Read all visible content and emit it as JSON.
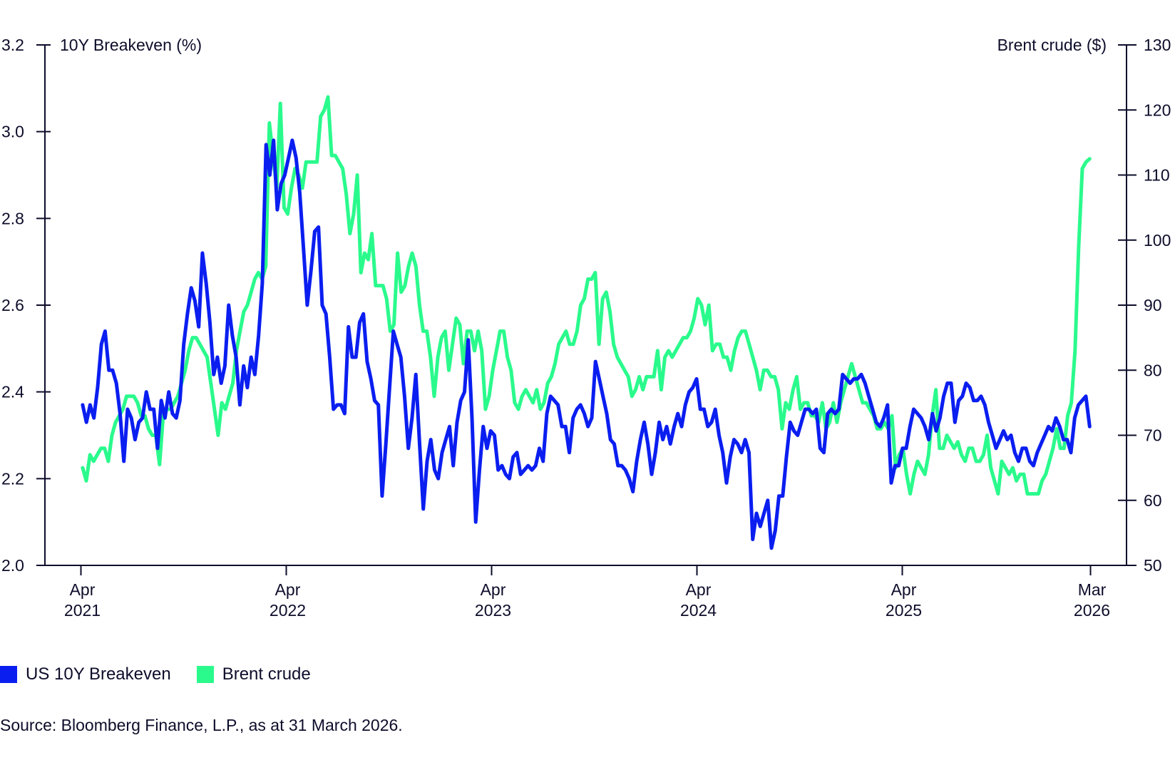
{
  "chart_data": {
    "type": "line",
    "x_range": [
      "2021-04",
      "2026-03"
    ],
    "frequency": "weekly",
    "x_ticks": [
      {
        "month": "Apr",
        "year": "2021",
        "index": 0
      },
      {
        "month": "Apr",
        "year": "2022",
        "index": 12
      },
      {
        "month": "Apr",
        "year": "2023",
        "index": 24
      },
      {
        "month": "Apr",
        "year": "2024",
        "index": 36
      },
      {
        "month": "Apr",
        "year": "2025",
        "index": 48
      },
      {
        "month": "Mar",
        "year": "2026",
        "index": 59
      }
    ],
    "y_left": {
      "label": "10Y Breakeven (%)",
      "ylim": [
        2.0,
        3.2
      ],
      "ticks": [
        "2.0",
        "2.2",
        "2.4",
        "2.6",
        "2.8",
        "3.0",
        "3.2"
      ]
    },
    "y_right": {
      "label": "Brent crude ($)",
      "ylim": [
        50,
        130
      ],
      "ticks": [
        "50",
        "60",
        "70",
        "80",
        "90",
        "100",
        "110",
        "120",
        "130"
      ]
    },
    "grid": false,
    "legend_position": "bottom-left",
    "series": [
      {
        "name": "US 10Y Breakeven",
        "axis": "left",
        "color": "#0a1ef0",
        "values": [
          2.37,
          2.33,
          2.37,
          2.34,
          2.41,
          2.51,
          2.54,
          2.45,
          2.45,
          2.42,
          2.35,
          2.24,
          2.36,
          2.34,
          2.29,
          2.33,
          2.34,
          2.4,
          2.36,
          2.36,
          2.27,
          2.38,
          2.34,
          2.4,
          2.35,
          2.34,
          2.38,
          2.51,
          2.58,
          2.64,
          2.61,
          2.55,
          2.72,
          2.65,
          2.56,
          2.44,
          2.48,
          2.42,
          2.46,
          2.6,
          2.53,
          2.48,
          2.37,
          2.46,
          2.41,
          2.48,
          2.44,
          2.53,
          2.65,
          2.97,
          2.9,
          2.98,
          2.82,
          2.88,
          2.9,
          2.94,
          2.98,
          2.94,
          2.86,
          2.73,
          2.6,
          2.68,
          2.77,
          2.78,
          2.6,
          2.58,
          2.48,
          2.36,
          2.37,
          2.37,
          2.35,
          2.55,
          2.48,
          2.48,
          2.56,
          2.58,
          2.47,
          2.43,
          2.38,
          2.37,
          2.16,
          2.28,
          2.41,
          2.54,
          2.51,
          2.48,
          2.39,
          2.27,
          2.34,
          2.44,
          2.28,
          2.13,
          2.24,
          2.29,
          2.22,
          2.2,
          2.26,
          2.29,
          2.32,
          2.23,
          2.33,
          2.38,
          2.4,
          2.52,
          2.34,
          2.1,
          2.22,
          2.32,
          2.27,
          2.31,
          2.3,
          2.22,
          2.23,
          2.21,
          2.2,
          2.25,
          2.26,
          2.21,
          2.22,
          2.23,
          2.22,
          2.23,
          2.27,
          2.24,
          2.35,
          2.39,
          2.38,
          2.37,
          2.32,
          2.32,
          2.26,
          2.34,
          2.36,
          2.37,
          2.35,
          2.32,
          2.34,
          2.47,
          2.43,
          2.39,
          2.35,
          2.29,
          2.28,
          2.23,
          2.23,
          2.22,
          2.2,
          2.17,
          2.24,
          2.29,
          2.33,
          2.28,
          2.21,
          2.26,
          2.33,
          2.29,
          2.32,
          2.28,
          2.32,
          2.35,
          2.32,
          2.37,
          2.4,
          2.41,
          2.43,
          2.36,
          2.36,
          2.32,
          2.33,
          2.36,
          2.3,
          2.26,
          2.19,
          2.25,
          2.29,
          2.28,
          2.26,
          2.29,
          2.26,
          2.06,
          2.12,
          2.09,
          2.12,
          2.15,
          2.04,
          2.08,
          2.16,
          2.16,
          2.25,
          2.33,
          2.31,
          2.3,
          2.33,
          2.36,
          2.36,
          2.35,
          2.36,
          2.27,
          2.26,
          2.35,
          2.36,
          2.35,
          2.36,
          2.44,
          2.43,
          2.42,
          2.43,
          2.43,
          2.44,
          2.42,
          2.39,
          2.36,
          2.33,
          2.32,
          2.34,
          2.37,
          2.19,
          2.23,
          2.23,
          2.27,
          2.27,
          2.32,
          2.36,
          2.35,
          2.34,
          2.32,
          2.29,
          2.35,
          2.31,
          2.34,
          2.39,
          2.42,
          2.42,
          2.33,
          2.38,
          2.39,
          2.42,
          2.41,
          2.38,
          2.38,
          2.39,
          2.37,
          2.33,
          2.3,
          2.27,
          2.29,
          2.31,
          2.29,
          2.3,
          2.26,
          2.24,
          2.27,
          2.27,
          2.24,
          2.23,
          2.26,
          2.28,
          2.3,
          2.32,
          2.31,
          2.34,
          2.32,
          2.29,
          2.29,
          2.26,
          2.34,
          2.37,
          2.38,
          2.39,
          2.32
        ]
      },
      {
        "name": "Brent crude",
        "axis": "right",
        "color": "#2afa8c",
        "values": [
          65,
          63,
          67,
          66,
          67,
          68,
          68,
          66,
          70,
          72,
          73,
          74,
          76,
          76,
          76,
          75,
          73,
          73,
          71,
          70,
          70,
          65.5,
          73,
          74,
          74,
          75,
          76,
          78,
          80,
          83,
          85,
          85,
          84,
          83,
          82,
          78,
          74,
          70,
          75,
          74,
          76,
          78,
          83,
          86,
          89,
          90,
          92,
          94,
          95,
          94,
          96,
          118,
          113,
          108,
          121,
          105,
          104,
          108,
          111,
          110,
          108,
          112,
          112,
          112,
          112,
          119,
          120,
          122,
          113,
          113,
          112,
          111,
          107,
          101,
          104,
          110,
          95,
          98,
          97,
          101,
          93,
          93,
          93,
          91,
          86,
          87,
          98,
          92,
          93,
          96,
          98,
          96,
          90,
          86,
          86,
          82,
          76,
          82,
          85,
          86,
          80,
          84,
          88,
          87,
          81,
          86,
          86,
          83,
          86,
          83,
          74,
          76,
          80,
          83,
          86,
          86,
          82,
          80,
          75,
          74,
          76,
          77,
          76,
          75,
          77,
          74,
          75,
          78,
          79,
          81,
          84,
          85,
          86,
          84,
          84,
          86,
          90,
          91,
          94,
          94,
          95,
          84,
          91,
          92,
          89,
          84,
          82,
          81,
          80,
          79,
          76,
          77,
          79,
          77,
          79,
          79,
          79,
          83,
          77,
          82,
          83,
          82,
          83,
          84,
          85,
          85,
          86,
          88,
          91,
          90,
          87,
          90,
          83,
          84,
          84,
          82,
          82,
          80,
          83,
          85,
          86,
          86,
          84,
          82,
          80,
          77,
          80,
          80,
          79,
          79,
          77,
          71,
          75,
          74,
          77,
          79,
          74,
          75,
          75,
          73,
          73,
          72,
          75,
          71,
          72,
          75,
          72,
          75,
          77,
          79,
          81,
          79,
          77,
          75,
          75,
          74,
          73,
          71,
          71,
          72,
          71,
          73,
          65,
          67,
          68,
          64,
          61,
          64,
          66,
          65,
          64,
          67,
          73,
          77,
          68,
          68,
          70,
          69,
          68,
          69,
          67,
          66,
          68,
          68,
          66,
          66,
          67,
          70,
          65,
          63,
          61,
          66,
          65,
          64,
          65,
          63,
          64,
          64,
          61,
          61,
          61,
          61,
          63,
          64,
          66,
          68,
          71,
          68,
          68,
          73,
          75,
          83,
          99,
          111,
          112,
          112.5
        ]
      }
    ]
  },
  "legend": [
    {
      "label": "US 10Y Breakeven",
      "color": "#0a1ef0"
    },
    {
      "label": "Brent crude",
      "color": "#2afa8c"
    }
  ],
  "source": "Source: Bloomberg Finance, L.P., as at 31 March 2026."
}
